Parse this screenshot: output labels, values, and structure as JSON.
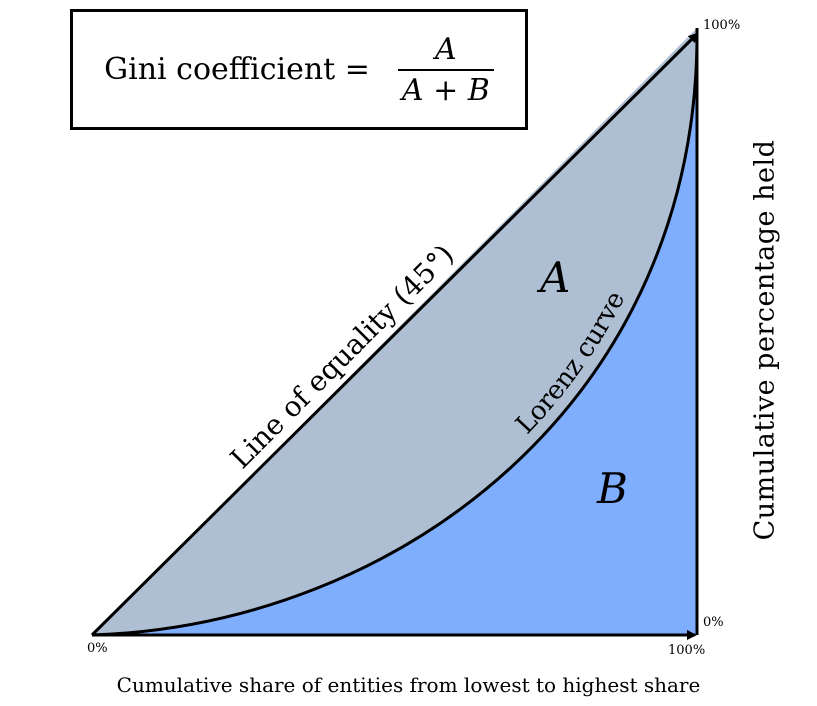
{
  "formula": {
    "lhs": "Gini coefficient =",
    "numerator": "A",
    "denominator": "A + B"
  },
  "labels": {
    "line_of_equality": "Line of equality (45°)",
    "lorenz_curve": "Lorenz curve",
    "region_a": "A",
    "region_b": "B",
    "xlabel": "Cumulative share of entities from lowest to highest share",
    "ylabel": "Cumulative percentage held"
  },
  "ticks": {
    "origin": "0%",
    "x_max": "100%",
    "y_max": "100%",
    "right_zero": "0%"
  },
  "colors": {
    "region_a_fill": "#aebfd3",
    "region_b_fill": "#7faeff",
    "stroke": "#000000"
  }
}
